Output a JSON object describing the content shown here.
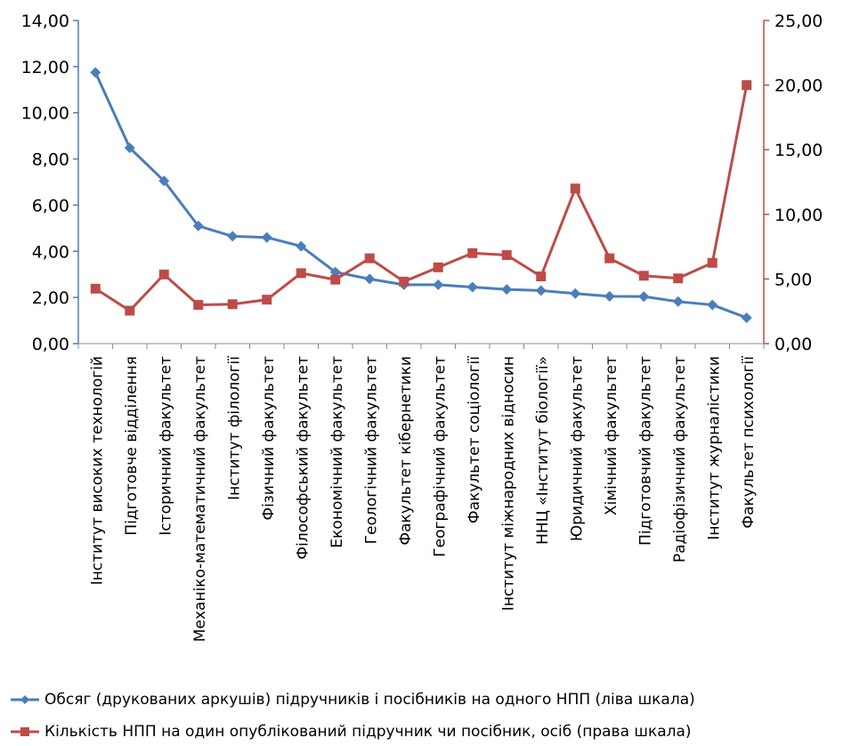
{
  "chart_data": {
    "type": "line",
    "categories": [
      "Інститут високих технологій",
      "Підготовче відділення",
      "Історичний факультет",
      "Механіко-математичний факультет",
      "Інститут філології",
      "Фізичний факультет",
      "Філософський факультет",
      "Економічний факультет",
      "Геологічний факультет",
      "Факультет кібернетики",
      "Географічний факультет",
      "Факультет соціології",
      "Інститут міжнародних відносин",
      "ННЦ «Інститут біології»",
      "Юридичний факультет",
      "Хімічний факультет",
      "Підготовчий факультет",
      "Радіофізичний факультет",
      "Інститут журналістики",
      "Факультет психології"
    ],
    "y_left": {
      "ylim": [
        0,
        14
      ],
      "ticks": [
        "0,00",
        "2,00",
        "4,00",
        "6,00",
        "8,00",
        "10,00",
        "12,00",
        "14,00"
      ]
    },
    "y_right": {
      "ylim": [
        0,
        25
      ],
      "ticks": [
        "0,00",
        "5,00",
        "10,00",
        "15,00",
        "20,00",
        "25,00"
      ]
    },
    "grid": false,
    "legend_position": "bottom",
    "series": [
      {
        "name": "Обсяг (друкованих аркушів) підручників і посібників на одного НПП (ліва шкала)",
        "axis": "left",
        "color": "#4a7ebb",
        "marker": "diamond",
        "values": [
          11.75,
          8.48,
          7.05,
          5.1,
          4.65,
          4.6,
          4.22,
          3.1,
          2.8,
          2.55,
          2.55,
          2.45,
          2.35,
          2.3,
          2.17,
          2.05,
          2.04,
          1.82,
          1.68,
          1.12
        ]
      },
      {
        "name": "Кількість НПП на один опублікований підручник чи посібник, осіб (права шкала)",
        "axis": "right",
        "color": "#be4b48",
        "marker": "square",
        "values": [
          4.25,
          2.55,
          5.35,
          3.0,
          3.05,
          3.4,
          5.45,
          4.95,
          6.6,
          4.8,
          5.9,
          7.0,
          6.85,
          5.2,
          12.0,
          6.6,
          5.25,
          5.05,
          6.25,
          20.0
        ]
      }
    ]
  }
}
